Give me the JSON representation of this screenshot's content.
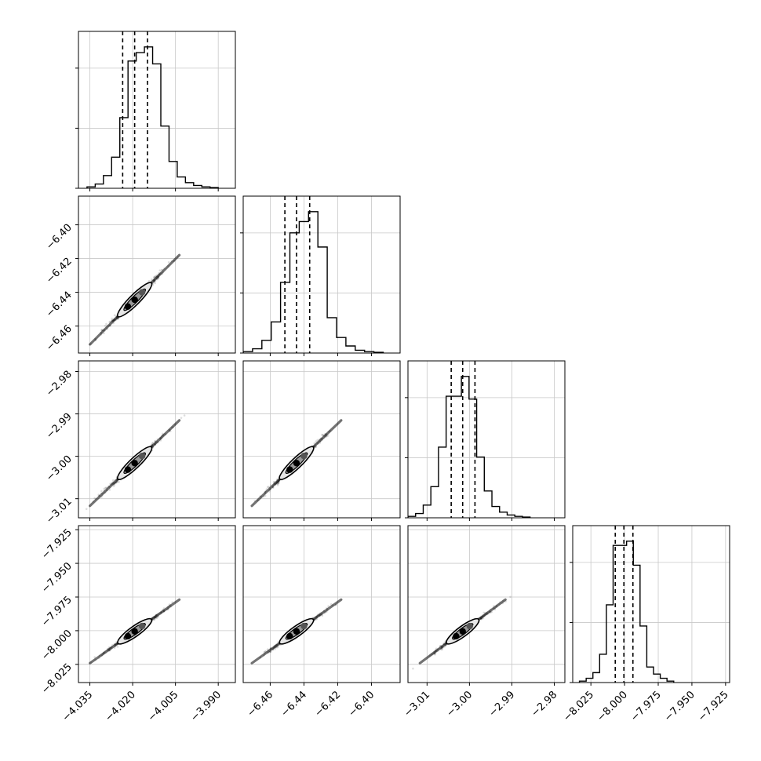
{
  "chart_data": [
    {
      "type": "corner",
      "parameters": [
        {
          "id": "p0",
          "xlim": [
            -4.039,
            -3.984
          ],
          "ticks": [
            -4.035,
            -4.02,
            -4.005,
            -3.99
          ],
          "tick_labels": [
            "−4.035",
            "−4.020",
            "−4.005",
            "−3.990"
          ],
          "quantiles": [
            -4.0235,
            -4.0193,
            -4.0148
          ],
          "hist_edges_range": [
            -4.036,
            -3.99
          ],
          "hist_counts": [
            1,
            3,
            9,
            22,
            50,
            90,
            96,
            100,
            88,
            44,
            19,
            8,
            4,
            2,
            1,
            0.5
          ]
        },
        {
          "id": "p1",
          "xlim": [
            -6.476,
            -6.383
          ],
          "ticks": [
            -6.46,
            -6.44,
            -6.42,
            -6.4
          ],
          "tick_labels": [
            "−6.46",
            "−6.44",
            "−6.42",
            "−6.40"
          ],
          "quantiles": [
            -6.4513,
            -6.4444,
            -6.4366
          ],
          "hist_edges_range": [
            -6.476,
            -6.393
          ],
          "hist_counts": [
            1,
            3,
            9,
            22,
            50,
            85,
            93,
            100,
            75,
            25,
            11,
            5,
            2,
            1,
            0.5
          ]
        },
        {
          "id": "p2",
          "xlim": [
            -3.0145,
            -2.9775
          ],
          "ticks": [
            -3.01,
            -3.0,
            -2.99,
            -2.98
          ],
          "tick_labels": [
            "−3.01",
            "−3.00",
            "−2.99",
            "−2.98"
          ],
          "quantiles": [
            -3.0043,
            -3.0016,
            -2.9987
          ],
          "hist_edges_range": [
            -3.0145,
            -2.9857
          ],
          "hist_counts": [
            1,
            3,
            9,
            22,
            50,
            86,
            86,
            100,
            84,
            43,
            19,
            8,
            4,
            2,
            1,
            0.5
          ]
        },
        {
          "id": "p3",
          "xlim": [
            -8.0385,
            -7.922
          ],
          "ticks": [
            -8.025,
            -8.0,
            -7.975,
            -7.95,
            -7.925
          ],
          "tick_labels": [
            "−8.025",
            "−8.000",
            "−7.975",
            "−7.950",
            "−7.925"
          ],
          "quantiles": [
            -8.0069,
            -8.0005,
            -7.9938
          ],
          "hist_edges_range": [
            -8.0335,
            -7.9635
          ],
          "hist_counts": [
            1,
            3,
            7,
            20,
            55,
            97,
            97,
            100,
            83,
            40,
            11,
            6,
            3,
            1
          ]
        }
      ],
      "grid": true,
      "axis_labels": []
    }
  ]
}
